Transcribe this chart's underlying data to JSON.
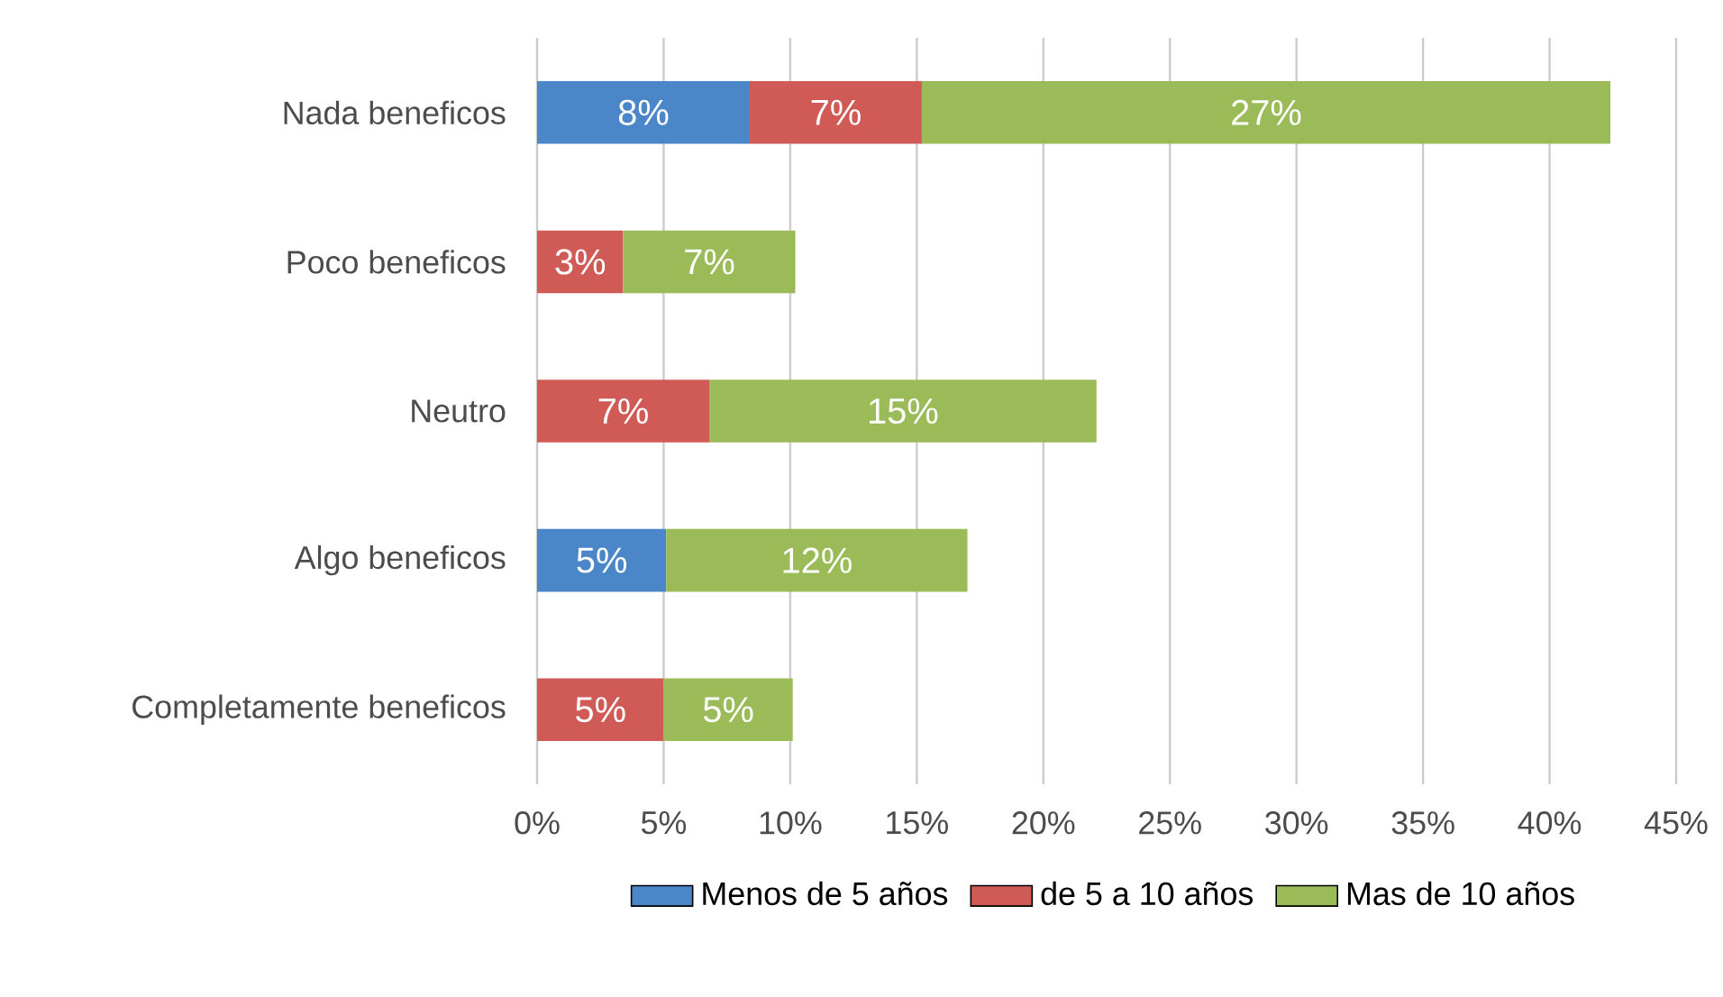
{
  "chart_data": {
    "type": "bar",
    "orientation": "horizontal",
    "stacked": true,
    "categories": [
      "Nada beneficos",
      "Poco beneficos",
      "Neutro",
      "Algo beneficos",
      "Completamente beneficos"
    ],
    "series": [
      {
        "name": "Menos de 5 años",
        "color": "#4a86c8",
        "values": [
          8.4,
          null,
          null,
          5.1,
          null
        ],
        "value_labels": [
          "8%",
          null,
          null,
          "5%",
          null
        ]
      },
      {
        "name": "de 5 a 10 años",
        "color": "#d05a55",
        "values": [
          6.8,
          3.4,
          6.8,
          null,
          5.0
        ],
        "value_labels": [
          "7%",
          "3%",
          "7%",
          null,
          "5%"
        ]
      },
      {
        "name": "Mas de 10 años",
        "color": "#9bbb59",
        "values": [
          27.2,
          6.8,
          15.3,
          11.9,
          5.1
        ],
        "value_labels": [
          "27%",
          "7%",
          "15%",
          "12%",
          "5%"
        ]
      }
    ],
    "xlim": [
      0,
      45
    ],
    "xticks": [
      {
        "value": 0,
        "label": "0%"
      },
      {
        "value": 5,
        "label": "5%"
      },
      {
        "value": 10,
        "label": "10%"
      },
      {
        "value": 15,
        "label": "15%"
      },
      {
        "value": 20,
        "label": "20%"
      },
      {
        "value": 25,
        "label": "25%"
      },
      {
        "value": 30,
        "label": "30%"
      },
      {
        "value": 35,
        "label": "35%"
      },
      {
        "value": 40,
        "label": "40%"
      },
      {
        "value": 45,
        "label": "45%"
      }
    ],
    "grid": "x",
    "legend": "bottom"
  }
}
